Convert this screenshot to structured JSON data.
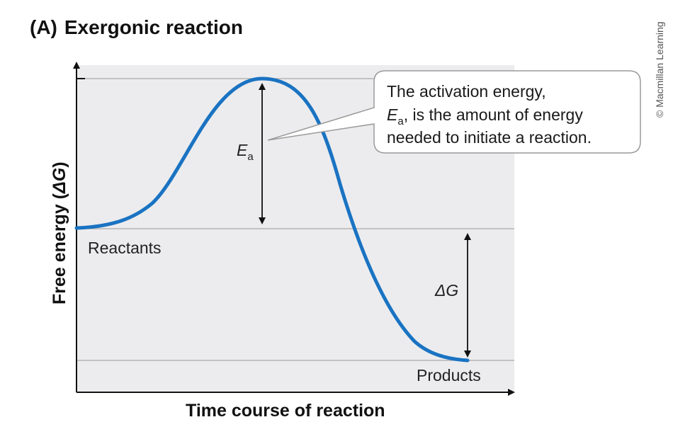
{
  "figure": {
    "title_tag": "(A)",
    "title": "Exergonic reaction",
    "credit": "© Macmillan Learning",
    "y_axis_label_prefix": "Free energy (",
    "y_axis_label_symbol": "ΔG",
    "y_axis_label_suffix": ")",
    "x_axis_label": "Time course of reaction",
    "reactants_label": "Reactants",
    "products_label": "Products",
    "ea_symbol": "E",
    "ea_subscript": "a",
    "dg_symbol": "ΔG",
    "callout": {
      "line1": "The activation energy,",
      "line2_symbol": "E",
      "line2_subscript": "a",
      "line2_rest": ", is the amount of energy",
      "line3": "needed to initiate a reaction."
    },
    "colors": {
      "curve": "#1a73c2",
      "plot_bg": "#ececee",
      "guide_line": "#a8a8a8",
      "axis": "#111111"
    }
  }
}
